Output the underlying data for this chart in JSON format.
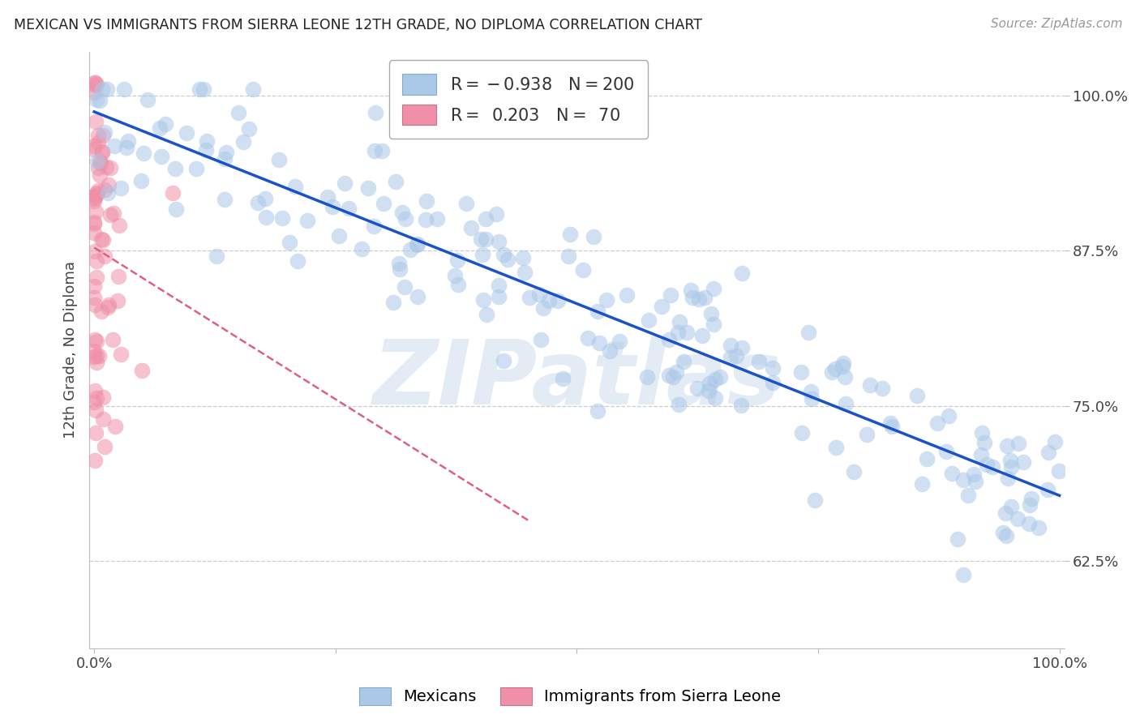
{
  "title": "MEXICAN VS IMMIGRANTS FROM SIERRA LEONE 12TH GRADE, NO DIPLOMA CORRELATION CHART",
  "source": "Source: ZipAtlas.com",
  "ylabel": "12th Grade, No Diploma",
  "blue_R": -0.938,
  "blue_N": 200,
  "pink_R": 0.203,
  "pink_N": 70,
  "blue_color": "#aac8e8",
  "blue_line_color": "#1a52c8",
  "pink_color": "#f090a8",
  "pink_line_color": "#e06080",
  "bg_color": "#ffffff",
  "grid_color": "#cccccc",
  "ytick_labels": [
    "62.5%",
    "75.0%",
    "87.5%",
    "100.0%"
  ],
  "ytick_positions": [
    0.625,
    0.75,
    0.875,
    1.0
  ],
  "watermark": "ZIPatlas",
  "legend_blue_label": "Mexicans",
  "legend_pink_label": "Immigrants from Sierra Leone",
  "blue_seed": 12,
  "pink_seed": 99,
  "xlim_min": -0.005,
  "xlim_max": 1.005,
  "ylim_min": 0.555,
  "ylim_max": 1.035
}
